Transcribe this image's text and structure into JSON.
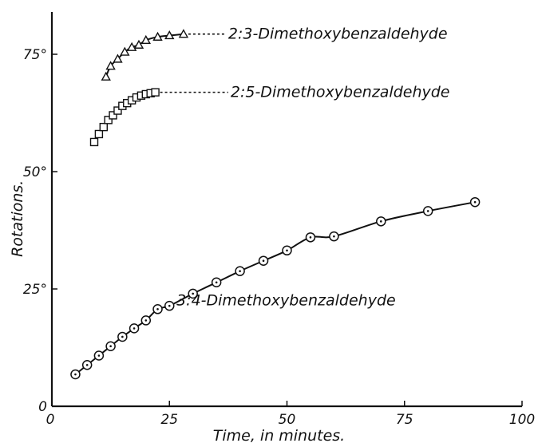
{
  "chart_data": {
    "type": "scatter",
    "title": "",
    "xlabel": "Time, in minutes.",
    "ylabel": "Rotations.",
    "xlim": [
      0,
      100
    ],
    "ylim": [
      0,
      85
    ],
    "x_ticks": [
      0,
      25,
      50,
      75,
      100
    ],
    "x_tick_labels": [
      "0",
      "25",
      "50",
      "75",
      "100"
    ],
    "y_ticks": [
      0,
      25,
      50,
      75
    ],
    "y_tick_labels": [
      "0",
      "25°",
      "50°",
      "75°"
    ],
    "grid": false,
    "series": [
      {
        "name": "2:3-Dimethoxybenzaldehyde",
        "marker": "triangle",
        "dashed_tail_to_x": 37,
        "x": [
          11.5,
          12.5,
          14,
          15.5,
          17,
          18.5,
          20,
          22.5,
          25,
          28
        ],
        "y": [
          70.2,
          72.5,
          74,
          75.5,
          76.5,
          77,
          78,
          78.7,
          79,
          79.3
        ]
      },
      {
        "name": "2:5-Dimethoxybenzaldehyde",
        "marker": "square",
        "dashed_tail_to_x": 37.5,
        "x": [
          9,
          10,
          11,
          12,
          13,
          14,
          15,
          16,
          17,
          18,
          19,
          20,
          21,
          22
        ],
        "y": [
          56.3,
          58,
          59.5,
          61,
          62,
          63,
          64,
          64.6,
          65.2,
          65.8,
          66.2,
          66.5,
          66.7,
          66.9
        ]
      },
      {
        "name": "3:4-Dimethoxybenzaldehyde",
        "marker": "circle",
        "x": [
          5,
          7.5,
          10,
          12.5,
          15,
          17.5,
          20,
          22.5,
          25,
          30,
          35,
          40,
          45,
          50,
          55,
          60,
          70,
          80,
          90
        ],
        "y": [
          6.8,
          8.8,
          10.8,
          12.8,
          14.8,
          16.6,
          18.3,
          20.7,
          21.4,
          24,
          26.4,
          28.8,
          31,
          33.2,
          36,
          36.2,
          39.4,
          41.6,
          43.5
        ]
      }
    ]
  }
}
